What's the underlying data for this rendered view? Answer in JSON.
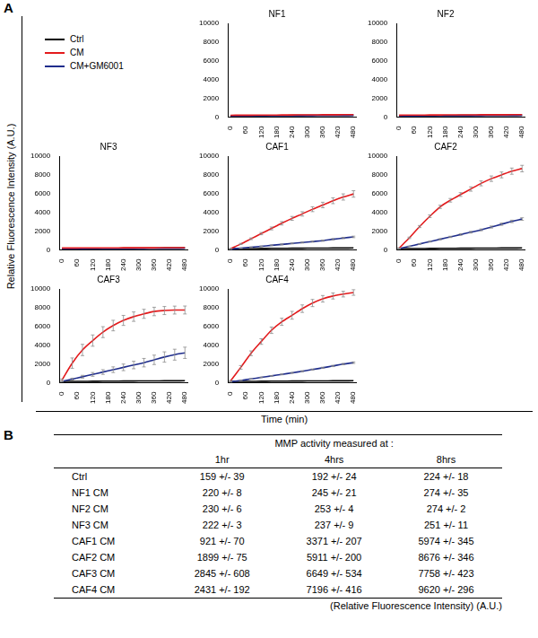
{
  "chart_data": [
    {
      "type": "line",
      "title": "NF1",
      "x": [
        0,
        40,
        80,
        120,
        160,
        200,
        240,
        280,
        320,
        360,
        400,
        440,
        480
      ],
      "xlim": [
        -10,
        490
      ],
      "xticks": [
        0,
        60,
        120,
        180,
        240,
        300,
        360,
        420,
        480
      ],
      "ylim": [
        0,
        10000
      ],
      "yticks": [
        0,
        2000,
        4000,
        6000,
        8000,
        10000
      ],
      "grid": false,
      "series": [
        {
          "name": "Ctrl",
          "color": "#000000",
          "values": [
            150,
            155,
            162,
            168,
            175,
            185,
            192,
            198,
            203,
            208,
            214,
            219,
            224
          ]
        },
        {
          "name": "CM",
          "color": "#e31a1c",
          "values": [
            210,
            216,
            221,
            226,
            231,
            238,
            245,
            252,
            258,
            263,
            268,
            271,
            274
          ]
        },
        {
          "name": "CM+GM6001",
          "color": "#1f2d8c",
          "values": [
            140,
            145,
            150,
            154,
            158,
            162,
            166,
            170,
            174,
            178,
            182,
            186,
            190
          ]
        }
      ]
    },
    {
      "type": "line",
      "title": "NF2",
      "x": [
        0,
        40,
        80,
        120,
        160,
        200,
        240,
        280,
        320,
        360,
        400,
        440,
        480
      ],
      "xlim": [
        -10,
        490
      ],
      "xticks": [
        0,
        60,
        120,
        180,
        240,
        300,
        360,
        420,
        480
      ],
      "ylim": [
        0,
        10000
      ],
      "yticks": [
        0,
        2000,
        4000,
        6000,
        8000,
        10000
      ],
      "grid": false,
      "series": [
        {
          "name": "Ctrl",
          "color": "#000000",
          "values": [
            150,
            155,
            162,
            168,
            175,
            185,
            192,
            198,
            203,
            208,
            214,
            219,
            224
          ]
        },
        {
          "name": "CM",
          "color": "#e31a1c",
          "values": [
            220,
            226,
            231,
            238,
            244,
            250,
            253,
            257,
            261,
            265,
            268,
            271,
            274
          ]
        },
        {
          "name": "CM+GM6001",
          "color": "#1f2d8c",
          "values": [
            140,
            145,
            150,
            154,
            158,
            162,
            166,
            170,
            174,
            178,
            182,
            186,
            190
          ]
        }
      ]
    },
    {
      "type": "line",
      "title": "NF3",
      "x": [
        0,
        40,
        80,
        120,
        160,
        200,
        240,
        280,
        320,
        360,
        400,
        440,
        480
      ],
      "xlim": [
        -10,
        490
      ],
      "xticks": [
        0,
        60,
        120,
        180,
        240,
        300,
        360,
        420,
        480
      ],
      "ylim": [
        0,
        10000
      ],
      "yticks": [
        0,
        2000,
        4000,
        6000,
        8000,
        10000
      ],
      "grid": false,
      "series": [
        {
          "name": "Ctrl",
          "color": "#000000",
          "values": [
            150,
            155,
            162,
            168,
            175,
            185,
            192,
            198,
            203,
            208,
            214,
            219,
            224
          ]
        },
        {
          "name": "CM",
          "color": "#e31a1c",
          "values": [
            215,
            220,
            223,
            227,
            230,
            234,
            237,
            240,
            243,
            246,
            248,
            250,
            251
          ]
        },
        {
          "name": "CM+GM6001",
          "color": "#1f2d8c",
          "values": [
            140,
            145,
            150,
            154,
            158,
            162,
            166,
            170,
            174,
            178,
            182,
            186,
            190
          ]
        }
      ]
    },
    {
      "type": "line",
      "title": "CAF1",
      "x": [
        0,
        40,
        80,
        120,
        160,
        200,
        240,
        280,
        320,
        360,
        400,
        440,
        480
      ],
      "xlim": [
        -10,
        490
      ],
      "xticks": [
        0,
        60,
        120,
        180,
        240,
        300,
        360,
        420,
        480
      ],
      "ylim": [
        0,
        10000
      ],
      "yticks": [
        0,
        2000,
        4000,
        6000,
        8000,
        10000
      ],
      "grid": false,
      "series": [
        {
          "name": "Ctrl",
          "color": "#000000",
          "values": [
            150,
            155,
            162,
            168,
            175,
            185,
            192,
            198,
            203,
            208,
            214,
            219,
            224
          ]
        },
        {
          "name": "CM",
          "color": "#e31a1c",
          "values": [
            150,
            650,
            1200,
            1750,
            2300,
            2850,
            3371,
            3850,
            4350,
            4800,
            5250,
            5650,
            5974
          ],
          "errors": [
            30,
            60,
            90,
            120,
            150,
            180,
            207,
            230,
            260,
            290,
            310,
            330,
            345
          ]
        },
        {
          "name": "CM+GM6001",
          "color": "#1f2d8c",
          "values": [
            100,
            200,
            300,
            400,
            500,
            600,
            700,
            800,
            900,
            1000,
            1150,
            1280,
            1400
          ],
          "errors": [
            20,
            25,
            30,
            35,
            40,
            45,
            50,
            55,
            60,
            65,
            70,
            75,
            80
          ]
        }
      ]
    },
    {
      "type": "line",
      "title": "CAF2",
      "x": [
        0,
        40,
        80,
        120,
        160,
        200,
        240,
        280,
        320,
        360,
        400,
        440,
        480
      ],
      "xlim": [
        -10,
        490
      ],
      "xticks": [
        0,
        60,
        120,
        180,
        240,
        300,
        360,
        420,
        480
      ],
      "ylim": [
        0,
        10000
      ],
      "yticks": [
        0,
        2000,
        4000,
        6000,
        8000,
        10000
      ],
      "grid": false,
      "series": [
        {
          "name": "Ctrl",
          "color": "#000000",
          "values": [
            150,
            155,
            162,
            168,
            175,
            185,
            192,
            198,
            203,
            208,
            214,
            219,
            224
          ]
        },
        {
          "name": "CM",
          "color": "#e31a1c",
          "values": [
            200,
            1300,
            2500,
            3600,
            4600,
            5300,
            5911,
            6500,
            7100,
            7600,
            8000,
            8400,
            8676
          ],
          "errors": [
            40,
            75,
            110,
            140,
            170,
            190,
            200,
            230,
            260,
            290,
            310,
            330,
            346
          ]
        },
        {
          "name": "CM+GM6001",
          "color": "#1f2d8c",
          "values": [
            150,
            400,
            650,
            900,
            1150,
            1400,
            1650,
            1900,
            2150,
            2450,
            2750,
            3050,
            3300
          ],
          "errors": [
            20,
            30,
            40,
            50,
            60,
            70,
            80,
            90,
            100,
            110,
            120,
            130,
            140
          ]
        }
      ]
    },
    {
      "type": "line",
      "title": "CAF3",
      "x": [
        0,
        40,
        80,
        120,
        160,
        200,
        240,
        280,
        320,
        360,
        400,
        440,
        480
      ],
      "xlim": [
        -10,
        490
      ],
      "xticks": [
        0,
        60,
        120,
        180,
        240,
        300,
        360,
        420,
        480
      ],
      "ylim": [
        0,
        10000
      ],
      "yticks": [
        0,
        2000,
        4000,
        6000,
        8000,
        10000
      ],
      "grid": false,
      "series": [
        {
          "name": "Ctrl",
          "color": "#000000",
          "values": [
            150,
            155,
            162,
            168,
            175,
            185,
            192,
            198,
            203,
            208,
            214,
            219,
            224
          ]
        },
        {
          "name": "CM",
          "color": "#e31a1c",
          "values": [
            300,
            2100,
            3500,
            4500,
            5400,
            6100,
            6649,
            7050,
            7350,
            7600,
            7700,
            7750,
            7758
          ],
          "errors": [
            100,
            550,
            600,
            600,
            580,
            560,
            534,
            500,
            480,
            450,
            430,
            420,
            423
          ]
        },
        {
          "name": "CM+GM6001",
          "color": "#1f2d8c",
          "values": [
            150,
            400,
            650,
            900,
            1150,
            1400,
            1650,
            1900,
            2150,
            2450,
            2750,
            3000,
            3200
          ],
          "errors": [
            50,
            100,
            150,
            200,
            250,
            300,
            350,
            400,
            450,
            500,
            550,
            580,
            600
          ]
        }
      ]
    },
    {
      "type": "line",
      "title": "CAF4",
      "x": [
        0,
        40,
        80,
        120,
        160,
        200,
        240,
        280,
        320,
        360,
        400,
        440,
        480
      ],
      "xlim": [
        -10,
        490
      ],
      "xticks": [
        0,
        60,
        120,
        180,
        240,
        300,
        360,
        420,
        480
      ],
      "ylim": [
        0,
        10000
      ],
      "yticks": [
        0,
        2000,
        4000,
        6000,
        8000,
        10000
      ],
      "grid": false,
      "series": [
        {
          "name": "Ctrl",
          "color": "#000000",
          "values": [
            150,
            155,
            162,
            168,
            175,
            185,
            192,
            198,
            203,
            208,
            214,
            219,
            224
          ]
        },
        {
          "name": "CM",
          "color": "#e31a1c",
          "values": [
            200,
            1650,
            3150,
            4400,
            5600,
            6500,
            7196,
            7900,
            8500,
            8950,
            9250,
            9450,
            9620
          ],
          "errors": [
            60,
            192,
            250,
            300,
            340,
            380,
            416,
            400,
            380,
            350,
            320,
            300,
            296
          ]
        },
        {
          "name": "CM+GM6001",
          "color": "#1f2d8c",
          "values": [
            100,
            260,
            420,
            580,
            740,
            900,
            1060,
            1240,
            1420,
            1600,
            1800,
            2000,
            2150
          ],
          "errors": [
            20,
            25,
            30,
            35,
            40,
            45,
            50,
            55,
            60,
            65,
            70,
            75,
            80
          ]
        }
      ]
    }
  ],
  "figure": {
    "panel_label": "A",
    "y_label": "Relative Fluorescence Intensity (A.U.)",
    "x_label": "Time (min)"
  },
  "table": {
    "panel_label": "B",
    "title": "MMP activity measured at :",
    "columns": [
      "1hr",
      "4hrs",
      "8hrs"
    ],
    "rows": [
      {
        "label": "Ctrl",
        "cells": [
          "159 +/- 39",
          "192 +/- 24",
          "224 +/- 18"
        ]
      },
      {
        "label": "NF1 CM",
        "cells": [
          "220 +/- 8",
          "245 +/- 21",
          "274 +/- 35"
        ]
      },
      {
        "label": "NF2 CM",
        "cells": [
          "230 +/- 6",
          "253 +/- 4",
          "274 +/- 2"
        ]
      },
      {
        "label": "NF3 CM",
        "cells": [
          "222 +/- 3",
          "237 +/- 9",
          "251 +/- 11"
        ]
      },
      {
        "label": "CAF1 CM",
        "cells": [
          "921 +/- 70",
          "3371 +/- 207",
          "5974 +/- 345"
        ]
      },
      {
        "label": "CAF2 CM",
        "cells": [
          "1899 +/- 75",
          "5911 +/- 200",
          "8676 +/- 346"
        ]
      },
      {
        "label": "CAF3 CM",
        "cells": [
          "2845 +/- 608",
          "6649 +/- 534",
          "7758 +/- 423"
        ]
      },
      {
        "label": "CAF4 CM",
        "cells": [
          "2431 +/- 192",
          "7196 +/- 416",
          "9620 +/- 296"
        ]
      }
    ],
    "footer": "(Relative Fluorescence Intensity) (A.U.)"
  }
}
